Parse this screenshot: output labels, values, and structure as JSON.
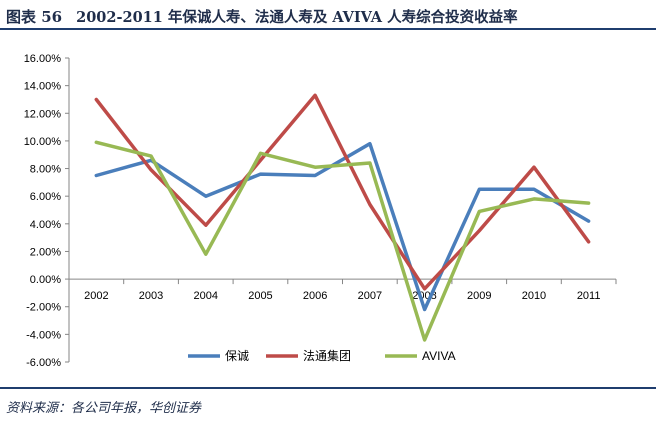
{
  "header": {
    "figure_no": "图表 56",
    "title": "2002-2011 年保诚人寿、法通人寿及 AVIVA 人寿综合投资收益率"
  },
  "source": "资料来源：各公司年报，华创证券",
  "chart_data": {
    "type": "line",
    "title": "2002-2011 年保诚人寿、法通人寿及 AVIVA 人寿综合投资收益率",
    "categories": [
      "2002",
      "2003",
      "2004",
      "2005",
      "2006",
      "2007",
      "2008",
      "2009",
      "2010",
      "2011"
    ],
    "series": [
      {
        "name": "保诚",
        "color": "#4a7ebb",
        "values": [
          7.5,
          8.6,
          6.0,
          7.6,
          7.5,
          9.8,
          -2.2,
          6.5,
          6.5,
          4.2
        ]
      },
      {
        "name": "法通集团",
        "color": "#be4b48",
        "values": [
          13.0,
          7.9,
          3.9,
          8.6,
          13.3,
          5.4,
          -0.7,
          3.5,
          8.1,
          2.7
        ]
      },
      {
        "name": "AVIVA",
        "color": "#98b954",
        "values": [
          9.9,
          8.9,
          1.8,
          9.1,
          8.1,
          8.4,
          -4.4,
          4.9,
          5.8,
          5.5
        ]
      }
    ],
    "y_ticks": [
      "16.00%",
      "14.00%",
      "12.00%",
      "10.00%",
      "8.00%",
      "6.00%",
      "4.00%",
      "2.00%",
      "0.00%",
      "-2.00%",
      "-4.00%",
      "-6.00%"
    ],
    "ylim": [
      -6,
      16
    ],
    "xlabel": "",
    "ylabel": "",
    "legend_position": "bottom"
  }
}
